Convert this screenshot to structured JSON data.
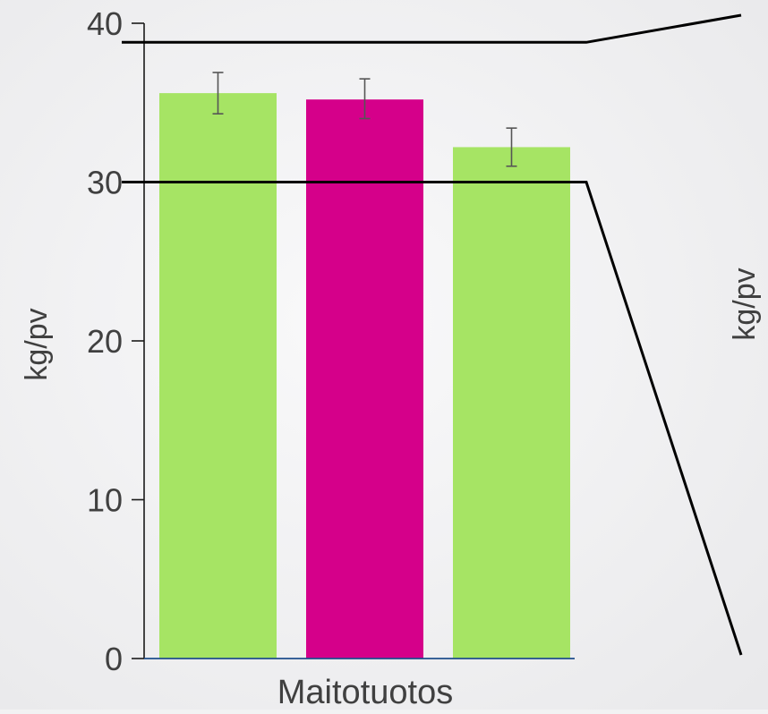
{
  "chart_data": {
    "type": "bar",
    "xlabel": "Maitotuotos",
    "ylabel": "kg/pv",
    "right_ylabel": "kg/pv",
    "ylim": [
      0,
      40
    ],
    "yticks": [
      0,
      10,
      20,
      30,
      40
    ],
    "values": [
      35.6,
      35.2,
      32.2
    ],
    "error_low": [
      34.3,
      34.0,
      31.0
    ],
    "error_high": [
      36.9,
      36.5,
      33.4
    ],
    "bar_colors": [
      "#a6e464",
      "#d5008a",
      "#a6e464"
    ],
    "grid": false,
    "zoom_band": [
      30,
      38.8
    ]
  },
  "colors": {
    "background": "#f2f2f3",
    "axis": "#1a1a1a",
    "baseline": "#1f4e8c",
    "errorbar": "#555555",
    "zoom_line": "#000000"
  }
}
